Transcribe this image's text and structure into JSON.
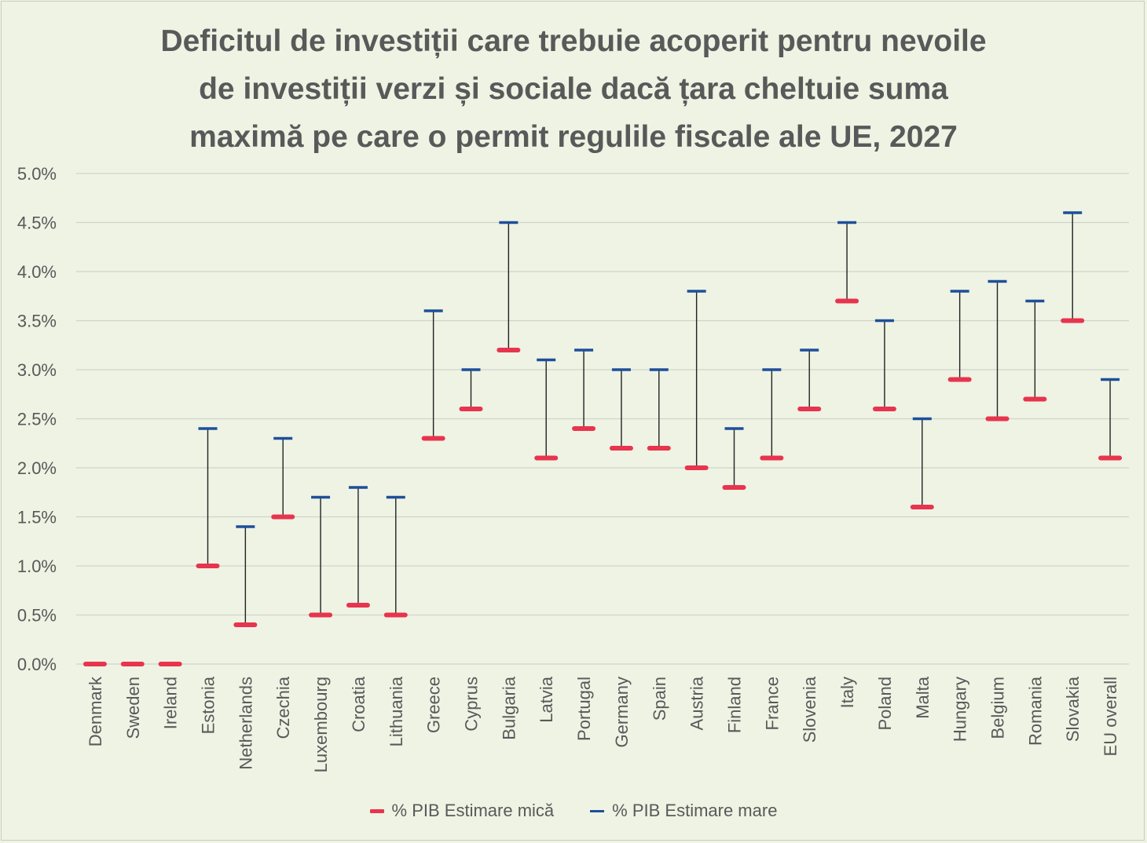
{
  "chart_data": {
    "type": "range",
    "title_lines": [
      "Deficitul de investiții care trebuie acoperit pentru nevoile",
      "de investiții verzi și sociale dacă țara cheltuie suma",
      "maximă pe care o permit regulile fiscale ale UE, 2027"
    ],
    "y_ticks": [
      "0.0%",
      "0.5%",
      "1.0%",
      "1.5%",
      "2.0%",
      "2.5%",
      "3.0%",
      "3.5%",
      "4.0%",
      "4.5%",
      "5.0%"
    ],
    "ylim": [
      0,
      5
    ],
    "grid": true,
    "legend_position": "bottom",
    "categories": [
      "Denmark",
      "Sweden",
      "Ireland",
      "Estonia",
      "Netherlands",
      "Czechia",
      "Luxembourg",
      "Croatia",
      "Lithuania",
      "Greece",
      "Cyprus",
      "Bulgaria",
      "Latvia",
      "Portugal",
      "Germany",
      "Spain",
      "Austria",
      "Finland",
      "France",
      "Slovenia",
      "Italy",
      "Poland",
      "Malta",
      "Hungary",
      "Belgium",
      "Romania",
      "Slovakia",
      "EU overall"
    ],
    "series": [
      {
        "name": "% PIB Estimare mică",
        "color": "#e8344e",
        "values": [
          0.0,
          0.0,
          0.0,
          1.0,
          0.4,
          1.5,
          0.5,
          0.6,
          0.5,
          2.3,
          2.6,
          3.2,
          2.1,
          2.4,
          2.2,
          2.2,
          2.0,
          1.8,
          2.1,
          2.6,
          3.7,
          2.6,
          1.6,
          2.9,
          2.5,
          2.7,
          3.5,
          2.1
        ]
      },
      {
        "name": "% PIB Estimare mare",
        "color": "#1f4e9a",
        "values": [
          0.0,
          0.0,
          0.0,
          2.4,
          1.4,
          2.3,
          1.7,
          1.8,
          1.7,
          3.6,
          3.0,
          4.5,
          3.1,
          3.2,
          3.0,
          3.0,
          3.8,
          2.4,
          3.0,
          3.2,
          4.5,
          3.5,
          2.5,
          3.8,
          3.9,
          3.7,
          4.6,
          2.9
        ]
      }
    ]
  }
}
